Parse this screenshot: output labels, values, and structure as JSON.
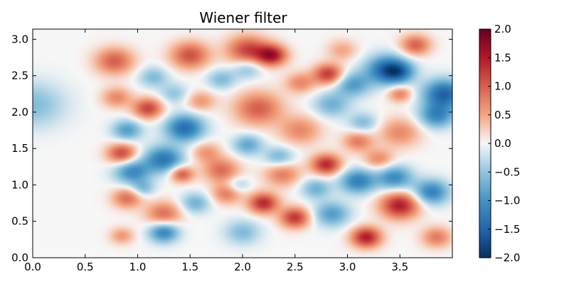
{
  "chart_data": {
    "type": "heatmap",
    "title": "Wiener filter",
    "xlabel": "",
    "ylabel": "",
    "xlim": [
      0.0,
      4.0
    ],
    "ylim": [
      0.0,
      3.14
    ],
    "x_ticks": [
      "0.0",
      "0.5",
      "1.0",
      "1.5",
      "2.0",
      "2.5",
      "3.0",
      "3.5"
    ],
    "y_ticks": [
      "0.0",
      "0.5",
      "1.0",
      "1.5",
      "2.0",
      "2.5",
      "3.0"
    ],
    "colorbar": {
      "colormap": "RdBu_r",
      "range": [
        -2.0,
        2.0
      ],
      "ticks": [
        "2.0",
        "1.5",
        "1.0",
        "0.5",
        "0.0",
        "−0.5",
        "−1.0",
        "−1.5",
        "−2.0"
      ]
    },
    "grid": false,
    "blobs": [
      {
        "x": 0.0,
        "y": 2.1,
        "v": -0.6,
        "s": 0.22
      },
      {
        "x": 0.78,
        "y": 2.7,
        "v": 1.0,
        "s": 0.13
      },
      {
        "x": 1.5,
        "y": 2.78,
        "v": 1.1,
        "s": 0.13
      },
      {
        "x": 2.05,
        "y": 2.85,
        "v": 1.2,
        "s": 0.14
      },
      {
        "x": 2.28,
        "y": 2.78,
        "v": 1.5,
        "s": 0.1
      },
      {
        "x": 3.65,
        "y": 2.92,
        "v": 1.0,
        "s": 0.1
      },
      {
        "x": 2.82,
        "y": 2.52,
        "v": 1.3,
        "s": 0.1
      },
      {
        "x": 3.38,
        "y": 2.58,
        "v": -1.5,
        "s": 0.14
      },
      {
        "x": 3.92,
        "y": 2.25,
        "v": -1.5,
        "s": 0.14
      },
      {
        "x": 3.85,
        "y": 1.95,
        "v": -1.1,
        "s": 0.12
      },
      {
        "x": 3.05,
        "y": 2.38,
        "v": -0.9,
        "s": 0.12
      },
      {
        "x": 1.15,
        "y": 2.48,
        "v": -0.6,
        "s": 0.1
      },
      {
        "x": 1.8,
        "y": 2.45,
        "v": -0.6,
        "s": 0.1
      },
      {
        "x": 3.5,
        "y": 2.25,
        "v": 0.8,
        "s": 0.08
      },
      {
        "x": 2.15,
        "y": 2.05,
        "v": 1.0,
        "s": 0.16
      },
      {
        "x": 1.1,
        "y": 2.05,
        "v": 1.2,
        "s": 0.1
      },
      {
        "x": 2.85,
        "y": 2.1,
        "v": -0.7,
        "s": 0.12
      },
      {
        "x": 1.45,
        "y": 1.78,
        "v": -1.4,
        "s": 0.13
      },
      {
        "x": 0.9,
        "y": 1.75,
        "v": -0.9,
        "s": 0.1
      },
      {
        "x": 1.6,
        "y": 2.15,
        "v": 0.6,
        "s": 0.1
      },
      {
        "x": 2.55,
        "y": 1.75,
        "v": 0.7,
        "s": 0.14
      },
      {
        "x": 3.5,
        "y": 1.72,
        "v": 0.7,
        "s": 0.14
      },
      {
        "x": 2.05,
        "y": 1.55,
        "v": -0.8,
        "s": 0.1
      },
      {
        "x": 0.85,
        "y": 1.43,
        "v": 1.2,
        "s": 0.1
      },
      {
        "x": 1.25,
        "y": 1.35,
        "v": -1.3,
        "s": 0.13
      },
      {
        "x": 0.95,
        "y": 1.18,
        "v": -1.1,
        "s": 0.12
      },
      {
        "x": 1.42,
        "y": 1.15,
        "v": 1.1,
        "s": 0.08
      },
      {
        "x": 1.8,
        "y": 1.2,
        "v": 0.9,
        "s": 0.12
      },
      {
        "x": 2.38,
        "y": 1.15,
        "v": 0.8,
        "s": 0.12
      },
      {
        "x": 2.8,
        "y": 1.28,
        "v": 1.4,
        "s": 0.1
      },
      {
        "x": 3.1,
        "y": 1.05,
        "v": -1.2,
        "s": 0.12
      },
      {
        "x": 3.45,
        "y": 1.1,
        "v": -1.1,
        "s": 0.12
      },
      {
        "x": 3.8,
        "y": 0.9,
        "v": -1.2,
        "s": 0.12
      },
      {
        "x": 0.9,
        "y": 0.82,
        "v": 0.9,
        "s": 0.1
      },
      {
        "x": 1.25,
        "y": 0.6,
        "v": 0.9,
        "s": 0.12
      },
      {
        "x": 1.55,
        "y": 0.75,
        "v": -0.7,
        "s": 0.1
      },
      {
        "x": 2.2,
        "y": 0.75,
        "v": 1.4,
        "s": 0.1
      },
      {
        "x": 1.85,
        "y": 0.88,
        "v": 0.8,
        "s": 0.1
      },
      {
        "x": 2.5,
        "y": 0.55,
        "v": 1.3,
        "s": 0.1
      },
      {
        "x": 2.85,
        "y": 0.6,
        "v": -0.9,
        "s": 0.12
      },
      {
        "x": 3.5,
        "y": 0.72,
        "v": 1.5,
        "s": 0.13
      },
      {
        "x": 1.25,
        "y": 0.35,
        "v": -1.2,
        "s": 0.1
      },
      {
        "x": 0.85,
        "y": 0.3,
        "v": 0.6,
        "s": 0.08
      },
      {
        "x": 2.0,
        "y": 0.35,
        "v": -0.6,
        "s": 0.12
      },
      {
        "x": 3.18,
        "y": 0.28,
        "v": 1.5,
        "s": 0.1
      },
      {
        "x": 3.85,
        "y": 0.28,
        "v": 0.8,
        "s": 0.1
      },
      {
        "x": 3.1,
        "y": 1.6,
        "v": 0.8,
        "s": 0.1
      },
      {
        "x": 2.35,
        "y": 1.38,
        "v": -0.7,
        "s": 0.1
      },
      {
        "x": 3.5,
        "y": 2.55,
        "v": -0.8,
        "s": 0.1
      },
      {
        "x": 1.65,
        "y": 1.45,
        "v": 0.6,
        "s": 0.1
      },
      {
        "x": 2.05,
        "y": 2.6,
        "v": -0.6,
        "s": 0.1
      },
      {
        "x": 2.55,
        "y": 2.4,
        "v": 0.7,
        "s": 0.1
      },
      {
        "x": 1.35,
        "y": 2.25,
        "v": -0.5,
        "s": 0.1
      },
      {
        "x": 2.7,
        "y": 0.95,
        "v": -0.7,
        "s": 0.1
      },
      {
        "x": 3.3,
        "y": 1.35,
        "v": 0.7,
        "s": 0.1
      },
      {
        "x": 0.8,
        "y": 2.2,
        "v": 0.7,
        "s": 0.1
      },
      {
        "x": 1.05,
        "y": 0.95,
        "v": -0.6,
        "s": 0.08
      },
      {
        "x": 2.95,
        "y": 2.85,
        "v": 0.5,
        "s": 0.1
      },
      {
        "x": 3.15,
        "y": 1.85,
        "v": -0.6,
        "s": 0.1
      },
      {
        "x": 1.95,
        "y": 1.0,
        "v": -0.5,
        "s": 0.08
      }
    ]
  }
}
